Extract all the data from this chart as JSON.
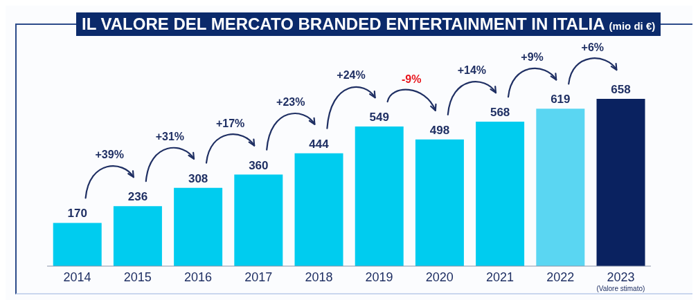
{
  "chart_data": {
    "type": "bar",
    "title": "IL VALORE DEL MERCATO BRANDED ENTERTAINMENT IN ITALIA",
    "subtitle": "(mio di €)",
    "categories": [
      "2014",
      "2015",
      "2016",
      "2017",
      "2018",
      "2019",
      "2020",
      "2021",
      "2022",
      "2023\n(Valore stimato)"
    ],
    "values": [
      170,
      236,
      308,
      360,
      444,
      549,
      498,
      568,
      619,
      658
    ],
    "colors": [
      "#00ccef",
      "#00ccef",
      "#00ccef",
      "#00ccef",
      "#00ccef",
      "#00ccef",
      "#00ccef",
      "#00ccef",
      "#5ad6f2",
      "#0a2260"
    ],
    "data_labels": true,
    "grid": false,
    "legend": false,
    "annotations": [
      "+39%",
      "+31%",
      "+17%",
      "+23%",
      "+24%",
      "-9%",
      "+14%",
      "+9%",
      "+6%"
    ]
  }
}
